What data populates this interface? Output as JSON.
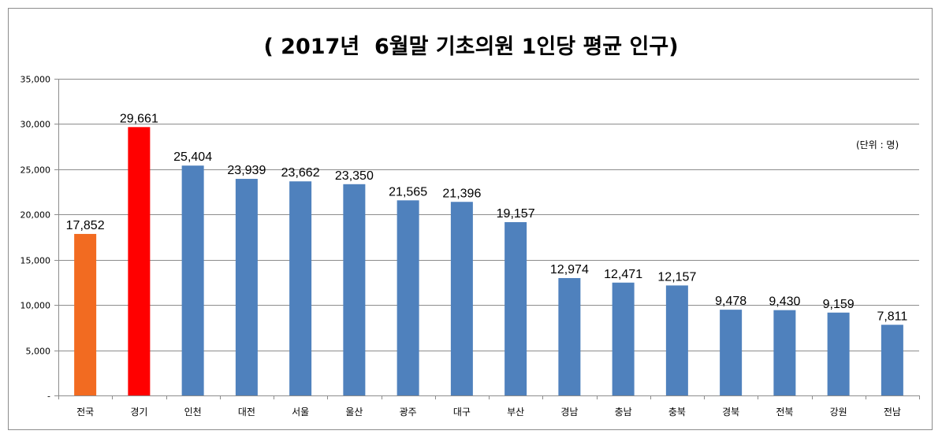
{
  "chart_data": {
    "type": "bar",
    "title": "( 2017년  6월말 기초의원 1인당 평균 인구)",
    "unit_note": "(단위 : 명)",
    "categories": [
      "전국",
      "경기",
      "인천",
      "대전",
      "서울",
      "울산",
      "광주",
      "대구",
      "부산",
      "경남",
      "충남",
      "충북",
      "경북",
      "전북",
      "강원",
      "전남"
    ],
    "values": [
      17852,
      29661,
      25404,
      23939,
      23662,
      23350,
      21565,
      21396,
      19157,
      12974,
      12471,
      12157,
      9478,
      9430,
      9159,
      7811
    ],
    "data_labels": [
      "17,852",
      "29,661",
      "25,404",
      "23,939",
      "23,662",
      "23,350",
      "21,565",
      "21,396",
      "19,157",
      "12,974",
      "12,471",
      "12,157",
      "9,478",
      "9,430",
      "9,159",
      "7,811"
    ],
    "bar_colors": [
      "#f26b21",
      "#ff0000",
      "#4f81bd",
      "#4f81bd",
      "#4f81bd",
      "#4f81bd",
      "#4f81bd",
      "#4f81bd",
      "#4f81bd",
      "#4f81bd",
      "#4f81bd",
      "#4f81bd",
      "#4f81bd",
      "#4f81bd",
      "#4f81bd",
      "#4f81bd"
    ],
    "ylim": [
      0,
      35000
    ],
    "yticks": [
      0,
      5000,
      10000,
      15000,
      20000,
      25000,
      30000,
      35000
    ],
    "ytick_labels": [
      "-",
      "5,000",
      "10,000",
      "15,000",
      "20,000",
      "25,000",
      "30,000",
      "35,000"
    ],
    "grid": true,
    "xlabel": "",
    "ylabel": ""
  }
}
